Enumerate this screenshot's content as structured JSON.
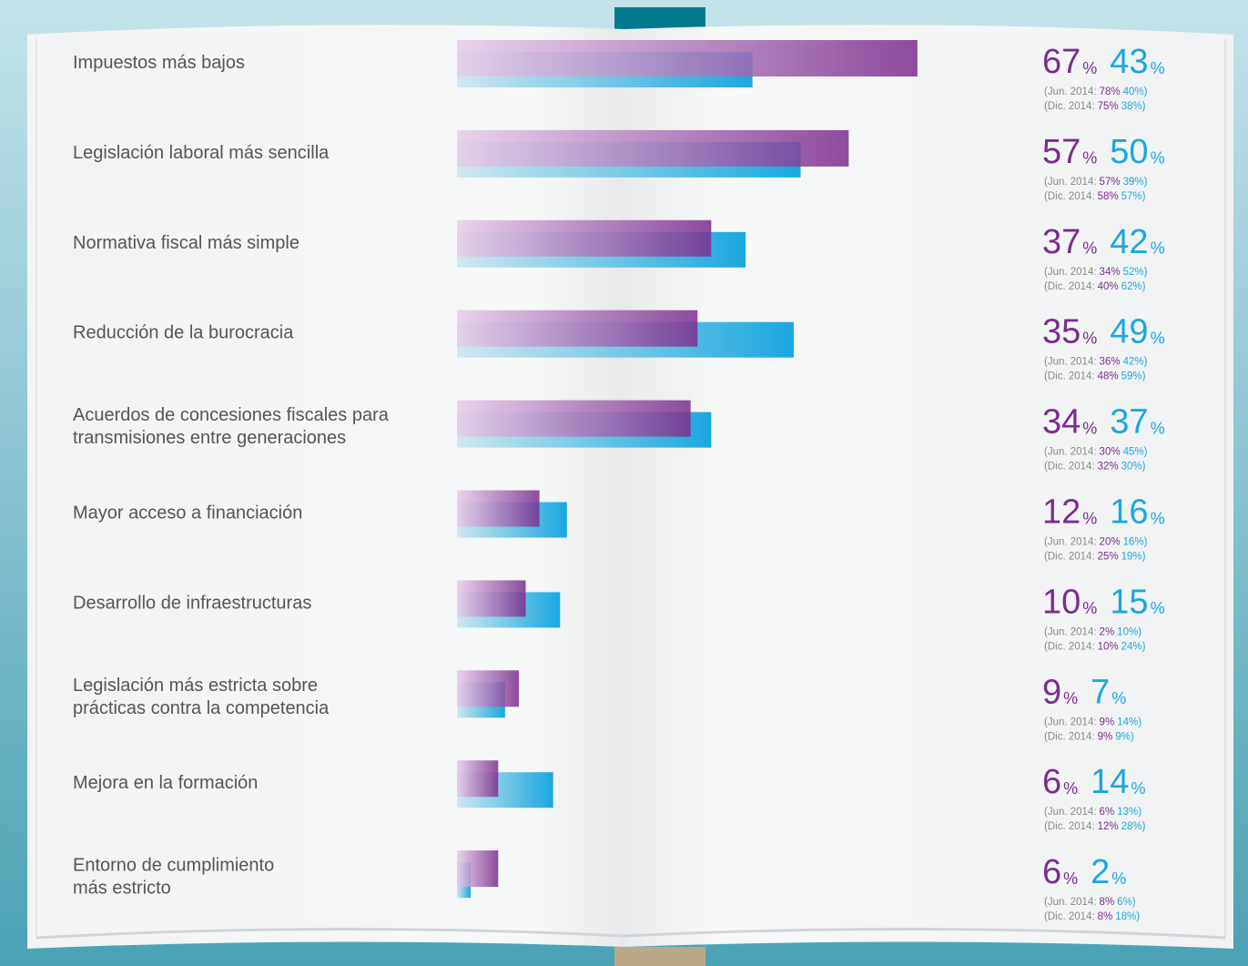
{
  "chart_data": {
    "type": "bar",
    "orientation": "horizontal",
    "categories": [
      "Impuestos más bajos",
      "Legislación laboral más sencilla",
      "Normativa fiscal más simple",
      "Reducción de la burocracia",
      "Acuerdos de concesiones fiscales para\ntransmisiones entre generaciones",
      "Mayor acceso a financiación",
      "Desarrollo de infraestructuras",
      "Legislación más estricta sobre\nprácticas contra la competencia",
      "Mejora en la formación",
      "Entorno de cumplimiento\nmás estricto"
    ],
    "xlim": [
      0,
      100
    ],
    "unit": "%",
    "series": [
      {
        "color": "#7b2d8e",
        "values": [
          67,
          57,
          37,
          35,
          34,
          12,
          10,
          9,
          6,
          6
        ]
      },
      {
        "color": "#1aa7e0",
        "values": [
          43,
          50,
          42,
          49,
          37,
          16,
          15,
          7,
          14,
          2
        ]
      }
    ],
    "previous": [
      {
        "label": "(Jun. 2014:",
        "closing": ")",
        "series": [
          {
            "color": "#7b2d8e",
            "values": [
              78,
              57,
              34,
              36,
              30,
              20,
              2,
              9,
              6,
              8
            ],
            "value_labels": [
              "78%",
              "57%",
              "34%",
              "36%",
              "30%",
              "20%",
              "2%",
              "9%",
              "6%",
              "8%"
            ]
          },
          {
            "color": "#1aa7e0",
            "values": [
              40,
              39,
              52,
              42,
              45,
              16,
              10,
              14,
              13,
              6
            ],
            "value_labels": [
              "40%",
              "39%",
              "52%",
              "42%",
              "45%",
              "16%",
              "10%",
              "14%",
              "13%",
              "6%"
            ]
          }
        ]
      },
      {
        "label": "(Dic. 2014:",
        "closing": ")",
        "series": [
          {
            "color": "#7b2d8e",
            "values": [
              75,
              58,
              40,
              48,
              32,
              25,
              10,
              9,
              12,
              8
            ],
            "value_labels": [
              "75%",
              "58%",
              "40%",
              "48%",
              "32%",
              "25%",
              "10%",
              "9%",
              "12%",
              "8%"
            ]
          },
          {
            "color": "#1aa7e0",
            "values": [
              38,
              57,
              62,
              59,
              30,
              19,
              24,
              9,
              28,
              18
            ],
            "value_labels": [
              "38%",
              "57%",
              "62%",
              "59%",
              "30%",
              "19%",
              "24%",
              "9%",
              "28%",
              "18%"
            ]
          }
        ]
      }
    ]
  }
}
